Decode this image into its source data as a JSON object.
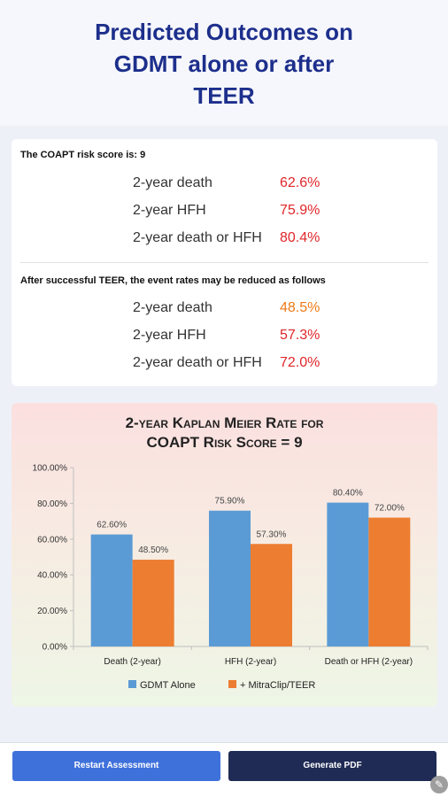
{
  "page": {
    "title_lines": [
      "Predicted Outcomes on",
      "GDMT alone or after",
      "TEER"
    ]
  },
  "results": {
    "risk_heading": "The COAPT risk score is: 9",
    "gdmt_rows": [
      {
        "label": "2-year death",
        "value": "62.6%"
      },
      {
        "label": "2-year HFH",
        "value": "75.9%"
      },
      {
        "label": "2-year death or HFH",
        "value": "80.4%"
      }
    ],
    "teer_heading": "After successful TEER, the event rates may be reduced as follows",
    "teer_rows": [
      {
        "label": "2-year death",
        "value": "48.5%"
      },
      {
        "label": "2-year HFH",
        "value": "57.3%"
      },
      {
        "label": "2-year death or HFH",
        "value": "72.0%"
      }
    ],
    "colors": {
      "gdmt_value": "#e0262a",
      "teer_death": "#ef7a16",
      "teer_other": "#e0262a"
    }
  },
  "chart_data": {
    "type": "bar",
    "title": "2-year Kaplan Meier Rate for COAPT Risk Score = 9",
    "title_lines": [
      "2-year Kaplan Meier Rate for",
      "COAPT Risk Score = 9"
    ],
    "categories": [
      "Death (2-year)",
      "HFH (2-year)",
      "Death or HFH (2-year)"
    ],
    "series": [
      {
        "name": "GDMT Alone",
        "values": [
          62.6,
          75.9,
          80.4
        ],
        "labels": [
          "62.60%",
          "75.90%",
          "80.40%"
        ],
        "color": "#5b9bd5"
      },
      {
        "name": "+ MitraClip/TEER",
        "values": [
          48.5,
          57.3,
          72.0
        ],
        "labels": [
          "48.50%",
          "57.30%",
          "72.00%"
        ],
        "color": "#ed7d31"
      }
    ],
    "ylim": [
      0,
      100
    ],
    "yticks": [
      0,
      20,
      40,
      60,
      80,
      100
    ],
    "ytick_labels": [
      "0.00%",
      "20.00%",
      "40.00%",
      "60.00%",
      "80.00%",
      "100.00%"
    ],
    "xlabel": "",
    "ylabel": "",
    "grid": false,
    "legend": "bottom"
  },
  "footer": {
    "restart_label": "Restart Assessment",
    "generate_label": "Generate PDF",
    "corner_icon": "pencil-icon"
  }
}
